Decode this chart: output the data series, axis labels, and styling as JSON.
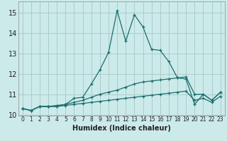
{
  "xlabel": "Humidex (Indice chaleur)",
  "ylabel": "",
  "bg_color": "#cceaea",
  "grid_color": "#aacccc",
  "line_color": "#1a6e6e",
  "xlim": [
    -0.5,
    23.5
  ],
  "ylim": [
    9.95,
    15.55
  ],
  "yticks": [
    10,
    11,
    12,
    13,
    14,
    15
  ],
  "xticks": [
    0,
    1,
    2,
    3,
    4,
    5,
    6,
    7,
    8,
    9,
    10,
    11,
    12,
    13,
    14,
    15,
    16,
    17,
    18,
    19,
    20,
    21,
    22,
    23
  ],
  "series": [
    {
      "x": [
        0,
        1,
        2,
        3,
        4,
        5,
        6,
        7,
        8,
        9,
        10,
        11,
        12,
        13,
        14,
        15,
        16,
        17,
        18,
        19,
        20,
        21,
        22,
        23
      ],
      "y": [
        10.3,
        10.2,
        10.4,
        10.4,
        10.4,
        10.5,
        10.8,
        10.85,
        11.5,
        12.2,
        13.05,
        15.1,
        13.6,
        14.9,
        14.3,
        13.2,
        13.15,
        12.6,
        11.8,
        11.75,
        10.5,
        11.0,
        10.7,
        11.1
      ]
    },
    {
      "x": [
        0,
        1,
        2,
        3,
        4,
        5,
        6,
        7,
        8,
        9,
        10,
        11,
        12,
        13,
        14,
        15,
        16,
        17,
        18,
        19,
        20,
        21,
        22,
        23
      ],
      "y": [
        10.3,
        10.2,
        10.4,
        10.4,
        10.45,
        10.5,
        10.6,
        10.7,
        10.85,
        11.0,
        11.1,
        11.2,
        11.35,
        11.5,
        11.6,
        11.65,
        11.7,
        11.75,
        11.8,
        11.85,
        11.0,
        11.0,
        10.7,
        11.1
      ]
    },
    {
      "x": [
        0,
        1,
        2,
        3,
        4,
        5,
        6,
        7,
        8,
        9,
        10,
        11,
        12,
        13,
        14,
        15,
        16,
        17,
        18,
        19,
        20,
        21,
        22,
        23
      ],
      "y": [
        10.3,
        10.2,
        10.4,
        10.4,
        10.4,
        10.45,
        10.5,
        10.55,
        10.6,
        10.65,
        10.7,
        10.75,
        10.8,
        10.85,
        10.9,
        10.95,
        11.0,
        11.05,
        11.1,
        11.15,
        10.7,
        10.8,
        10.6,
        10.9
      ]
    }
  ]
}
